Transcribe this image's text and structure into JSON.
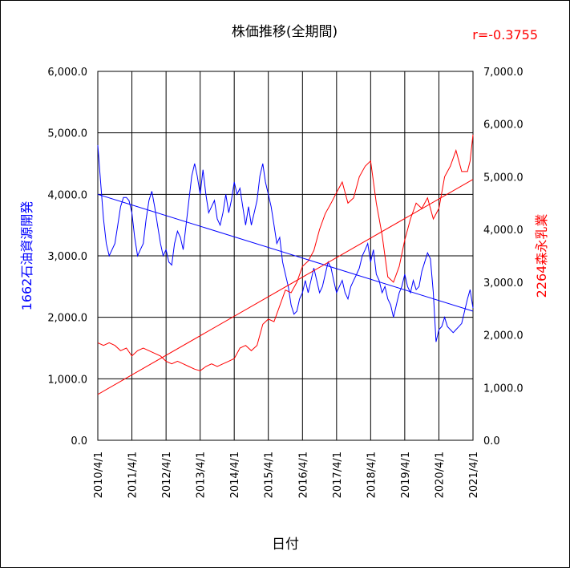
{
  "chart_data": {
    "type": "line",
    "title": "株価推移(全期間)",
    "correlation_label": "r=-0.3755",
    "xlabel": "日付",
    "x_ticks": [
      "2010/4/1",
      "2011/4/1",
      "2012/4/1",
      "2013/4/1",
      "2014/4/1",
      "2015/4/1",
      "2016/4/1",
      "2017/4/1",
      "2018/4/1",
      "2019/4/1",
      "2020/4/1",
      "2021/4/1"
    ],
    "x_range": [
      "2010/4/1",
      "2021/4/1"
    ],
    "y_left": {
      "label": "1662石油資源開発",
      "ticks": [
        "0.0",
        "1,000.0",
        "2,000.0",
        "3,000.0",
        "4,000.0",
        "5,000.0",
        "6,000.0"
      ],
      "ylim": [
        0,
        6000
      ]
    },
    "y_right": {
      "label": "2264森永乳業",
      "ticks": [
        "0.0",
        "1,000.0",
        "2,000.0",
        "3,000.0",
        "4,000.0",
        "5,000.0",
        "6,000.0",
        "7,000.0"
      ],
      "ylim": [
        0,
        7000
      ]
    },
    "grid": true,
    "series": [
      {
        "name": "1662石油資源開発",
        "axis": "left",
        "color": "#0000ff",
        "points": [
          [
            "2010/4/1",
            4800
          ],
          [
            "2010/5/1",
            4200
          ],
          [
            "2010/6/1",
            3600
          ],
          [
            "2010/7/1",
            3200
          ],
          [
            "2010/8/1",
            3000
          ],
          [
            "2010/9/1",
            3100
          ],
          [
            "2010/10/1",
            3200
          ],
          [
            "2010/11/1",
            3500
          ],
          [
            "2010/12/1",
            3800
          ],
          [
            "2011/1/1",
            3950
          ],
          [
            "2011/2/1",
            3950
          ],
          [
            "2011/3/1",
            3900
          ],
          [
            "2011/4/1",
            3700
          ],
          [
            "2011/5/1",
            3300
          ],
          [
            "2011/6/1",
            3000
          ],
          [
            "2011/7/1",
            3100
          ],
          [
            "2011/8/1",
            3200
          ],
          [
            "2011/9/1",
            3600
          ],
          [
            "2011/10/1",
            3900
          ],
          [
            "2011/11/1",
            4050
          ],
          [
            "2011/12/1",
            3800
          ],
          [
            "2012/1/1",
            3500
          ],
          [
            "2012/2/1",
            3200
          ],
          [
            "2012/3/1",
            3000
          ],
          [
            "2012/4/1",
            3100
          ],
          [
            "2012/5/1",
            2900
          ],
          [
            "2012/6/1",
            2850
          ],
          [
            "2012/7/1",
            3200
          ],
          [
            "2012/8/1",
            3400
          ],
          [
            "2012/9/1",
            3300
          ],
          [
            "2012/10/1",
            3100
          ],
          [
            "2012/11/1",
            3500
          ],
          [
            "2012/12/1",
            3900
          ],
          [
            "2013/1/1",
            4300
          ],
          [
            "2013/2/1",
            4500
          ],
          [
            "2013/3/1",
            4300
          ],
          [
            "2013/4/1",
            4000
          ],
          [
            "2013/5/1",
            4400
          ],
          [
            "2013/6/1",
            4000
          ],
          [
            "2013/7/1",
            3700
          ],
          [
            "2013/8/1",
            3800
          ],
          [
            "2013/9/1",
            3900
          ],
          [
            "2013/10/1",
            3600
          ],
          [
            "2013/11/1",
            3500
          ],
          [
            "2013/12/1",
            3700
          ],
          [
            "2014/1/1",
            4000
          ],
          [
            "2014/2/1",
            3700
          ],
          [
            "2014/3/1",
            3900
          ],
          [
            "2014/4/1",
            4200
          ],
          [
            "2014/5/1",
            4000
          ],
          [
            "2014/6/1",
            4100
          ],
          [
            "2014/7/1",
            3800
          ],
          [
            "2014/8/1",
            3500
          ],
          [
            "2014/9/1",
            3800
          ],
          [
            "2014/10/1",
            3500
          ],
          [
            "2014/11/1",
            3700
          ],
          [
            "2014/12/1",
            3900
          ],
          [
            "2015/1/1",
            4300
          ],
          [
            "2015/2/1",
            4500
          ],
          [
            "2015/3/1",
            4200
          ],
          [
            "2015/4/1",
            4000
          ],
          [
            "2015/5/1",
            3800
          ],
          [
            "2015/6/1",
            3500
          ],
          [
            "2015/7/1",
            3200
          ],
          [
            "2015/8/1",
            3300
          ],
          [
            "2015/9/1",
            2900
          ],
          [
            "2015/10/1",
            2700
          ],
          [
            "2015/11/1",
            2500
          ],
          [
            "2015/12/1",
            2200
          ],
          [
            "2016/1/1",
            2050
          ],
          [
            "2016/2/1",
            2100
          ],
          [
            "2016/3/1",
            2300
          ],
          [
            "2016/4/1",
            2400
          ],
          [
            "2016/5/1",
            2600
          ],
          [
            "2016/6/1",
            2400
          ],
          [
            "2016/7/1",
            2600
          ],
          [
            "2016/8/1",
            2800
          ],
          [
            "2016/9/1",
            2600
          ],
          [
            "2016/10/1",
            2400
          ],
          [
            "2016/11/1",
            2500
          ],
          [
            "2016/12/1",
            2700
          ],
          [
            "2017/1/1",
            2900
          ],
          [
            "2017/2/1",
            2800
          ],
          [
            "2017/3/1",
            2600
          ],
          [
            "2017/4/1",
            2400
          ],
          [
            "2017/5/1",
            2500
          ],
          [
            "2017/6/1",
            2600
          ],
          [
            "2017/7/1",
            2400
          ],
          [
            "2017/8/1",
            2300
          ],
          [
            "2017/9/1",
            2500
          ],
          [
            "2017/10/1",
            2600
          ],
          [
            "2017/11/1",
            2700
          ],
          [
            "2017/12/1",
            2800
          ],
          [
            "2018/1/1",
            3000
          ],
          [
            "2018/2/1",
            3100
          ],
          [
            "2018/3/1",
            3200
          ],
          [
            "2018/4/1",
            2900
          ],
          [
            "2018/5/1",
            3100
          ],
          [
            "2018/6/1",
            2700
          ],
          [
            "2018/7/1",
            2600
          ],
          [
            "2018/8/1",
            2400
          ],
          [
            "2018/9/1",
            2500
          ],
          [
            "2018/10/1",
            2300
          ],
          [
            "2018/11/1",
            2200
          ],
          [
            "2018/12/1",
            2000
          ],
          [
            "2019/1/1",
            2200
          ],
          [
            "2019/2/1",
            2400
          ],
          [
            "2019/3/1",
            2500
          ],
          [
            "2019/4/1",
            2700
          ],
          [
            "2019/5/1",
            2500
          ],
          [
            "2019/6/1",
            2400
          ],
          [
            "2019/7/1",
            2600
          ],
          [
            "2019/8/1",
            2450
          ],
          [
            "2019/9/1",
            2500
          ],
          [
            "2019/10/1",
            2750
          ],
          [
            "2019/11/1",
            2900
          ],
          [
            "2019/12/1",
            3050
          ],
          [
            "2020/1/1",
            2950
          ],
          [
            "2020/2/1",
            2400
          ],
          [
            "2020/3/1",
            1600
          ],
          [
            "2020/4/1",
            1800
          ],
          [
            "2020/5/1",
            1850
          ],
          [
            "2020/6/1",
            2000
          ],
          [
            "2020/7/1",
            1850
          ],
          [
            "2020/8/1",
            1800
          ],
          [
            "2020/9/1",
            1750
          ],
          [
            "2020/10/1",
            1800
          ],
          [
            "2020/11/1",
            1850
          ],
          [
            "2020/12/1",
            1900
          ],
          [
            "2021/1/1",
            2100
          ],
          [
            "2021/2/1",
            2300
          ],
          [
            "2021/3/1",
            2450
          ],
          [
            "2021/4/1",
            2150
          ]
        ]
      },
      {
        "name": "2264森永乳業",
        "axis": "right",
        "color": "#ff0000",
        "points": [
          [
            "2010/4/1",
            1850
          ],
          [
            "2010/6/1",
            1800
          ],
          [
            "2010/8/1",
            1850
          ],
          [
            "2010/10/1",
            1800
          ],
          [
            "2010/12/1",
            1700
          ],
          [
            "2011/2/1",
            1750
          ],
          [
            "2011/4/1",
            1600
          ],
          [
            "2011/6/1",
            1700
          ],
          [
            "2011/8/1",
            1750
          ],
          [
            "2011/10/1",
            1700
          ],
          [
            "2011/12/1",
            1650
          ],
          [
            "2012/2/1",
            1600
          ],
          [
            "2012/4/1",
            1500
          ],
          [
            "2012/6/1",
            1450
          ],
          [
            "2012/8/1",
            1500
          ],
          [
            "2012/10/1",
            1450
          ],
          [
            "2012/12/1",
            1400
          ],
          [
            "2013/2/1",
            1350
          ],
          [
            "2013/4/1",
            1320
          ],
          [
            "2013/6/1",
            1400
          ],
          [
            "2013/8/1",
            1450
          ],
          [
            "2013/10/1",
            1400
          ],
          [
            "2013/12/1",
            1450
          ],
          [
            "2014/2/1",
            1500
          ],
          [
            "2014/4/1",
            1550
          ],
          [
            "2014/6/1",
            1750
          ],
          [
            "2014/8/1",
            1800
          ],
          [
            "2014/10/1",
            1700
          ],
          [
            "2014/12/1",
            1800
          ],
          [
            "2015/2/1",
            2200
          ],
          [
            "2015/4/1",
            2300
          ],
          [
            "2015/6/1",
            2250
          ],
          [
            "2015/8/1",
            2550
          ],
          [
            "2015/10/1",
            2850
          ],
          [
            "2015/12/1",
            2800
          ],
          [
            "2016/2/1",
            3000
          ],
          [
            "2016/4/1",
            3300
          ],
          [
            "2016/6/1",
            3400
          ],
          [
            "2016/8/1",
            3600
          ],
          [
            "2016/10/1",
            4000
          ],
          [
            "2016/12/1",
            4300
          ],
          [
            "2017/2/1",
            4500
          ],
          [
            "2017/4/1",
            4700
          ],
          [
            "2017/6/1",
            4900
          ],
          [
            "2017/8/1",
            4500
          ],
          [
            "2017/10/1",
            4600
          ],
          [
            "2017/12/1",
            5000
          ],
          [
            "2018/2/1",
            5200
          ],
          [
            "2018/4/1",
            5300
          ],
          [
            "2018/6/1",
            4500
          ],
          [
            "2018/8/1",
            3900
          ],
          [
            "2018/10/1",
            3100
          ],
          [
            "2018/12/1",
            3000
          ],
          [
            "2019/2/1",
            3300
          ],
          [
            "2019/4/1",
            3800
          ],
          [
            "2019/6/1",
            4200
          ],
          [
            "2019/8/1",
            4500
          ],
          [
            "2019/10/1",
            4400
          ],
          [
            "2019/12/1",
            4600
          ],
          [
            "2020/2/1",
            4200
          ],
          [
            "2020/4/1",
            4400
          ],
          [
            "2020/6/1",
            5000
          ],
          [
            "2020/8/1",
            5200
          ],
          [
            "2020/10/1",
            5500
          ],
          [
            "2020/12/1",
            5100
          ],
          [
            "2021/2/1",
            5100
          ],
          [
            "2021/3/1",
            5300
          ],
          [
            "2021/4/1",
            5800
          ]
        ]
      }
    ],
    "trend_lines": [
      {
        "axis": "left",
        "color": "#0000ff",
        "from": [
          "2010/4/1",
          4000
        ],
        "to": [
          "2021/4/1",
          2100
        ]
      },
      {
        "axis": "right",
        "color": "#ff0000",
        "from": [
          "2010/4/1",
          870
        ],
        "to": [
          "2021/4/1",
          4950
        ]
      }
    ]
  }
}
